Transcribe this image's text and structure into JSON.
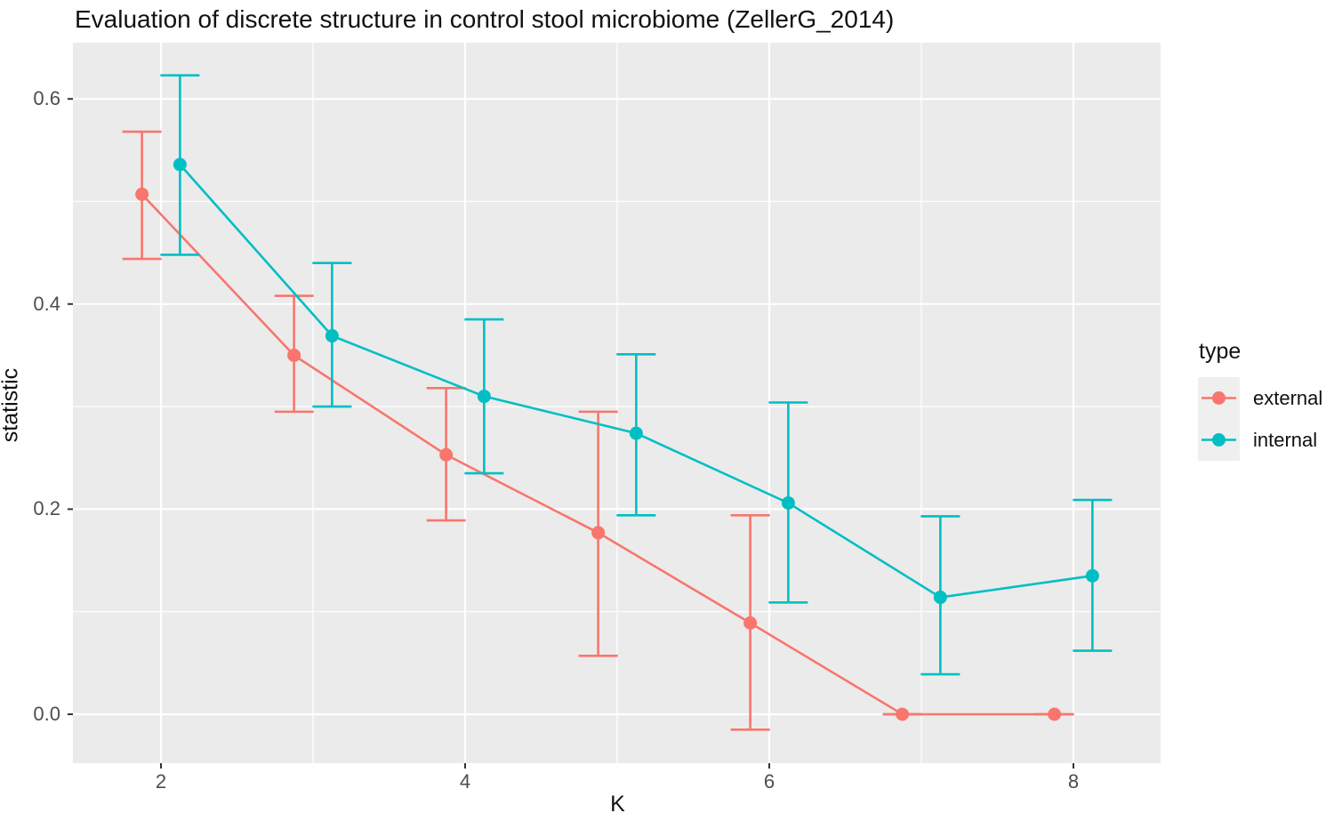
{
  "title": "Evaluation of discrete structure in control stool microbiome (ZellerG_2014)",
  "colors": {
    "external": "#F8766D",
    "internal": "#00BFC4",
    "panel_background": "#EBEBEB",
    "gridline": "#FFFFFF",
    "tick_label": "#4D4D4D",
    "legend_key_background": "#EFEFEF",
    "text": "#111111"
  },
  "chart_data": {
    "type": "line",
    "title": "Evaluation of discrete structure in control stool microbiome (ZellerG_2014)",
    "xlabel": "K",
    "ylabel": "statistic",
    "x_tick_labels": [
      "2",
      "4",
      "6",
      "8"
    ],
    "x_tick_values": [
      2,
      4,
      6,
      8
    ],
    "x_minor_gridlines": [
      3,
      5,
      7
    ],
    "y_tick_labels": [
      "0.0",
      "0.2",
      "0.4",
      "0.6"
    ],
    "y_tick_values": [
      0.0,
      0.2,
      0.4,
      0.6
    ],
    "y_minor_gridlines": [
      0.1,
      0.3,
      0.5
    ],
    "xlim": [
      1.42,
      8.53
    ],
    "ylim": [
      -0.048,
      0.655
    ],
    "grid": "on",
    "legend": {
      "title": "type",
      "position": "right",
      "entries": [
        "external",
        "internal"
      ]
    },
    "series": [
      {
        "name": "external",
        "color": "#F8766D",
        "x_offset": -0.125,
        "x": [
          2,
          3,
          4,
          5,
          6,
          7,
          8
        ],
        "y": [
          0.507,
          0.35,
          0.253,
          0.177,
          0.089,
          0.0,
          0.0
        ],
        "ymin": [
          0.444,
          0.295,
          0.189,
          0.057,
          -0.015,
          0.0,
          0.0
        ],
        "ymax": [
          0.568,
          0.408,
          0.318,
          0.295,
          0.194,
          0.0,
          0.0
        ]
      },
      {
        "name": "internal",
        "color": "#00BFC4",
        "x_offset": 0.125,
        "x": [
          2,
          3,
          4,
          5,
          6,
          7,
          8
        ],
        "y": [
          0.536,
          0.369,
          0.31,
          0.274,
          0.206,
          0.114,
          0.135
        ],
        "ymin": [
          0.448,
          0.3,
          0.235,
          0.194,
          0.109,
          0.039,
          0.062
        ],
        "ymax": [
          0.623,
          0.44,
          0.385,
          0.351,
          0.304,
          0.193,
          0.209
        ]
      }
    ]
  }
}
